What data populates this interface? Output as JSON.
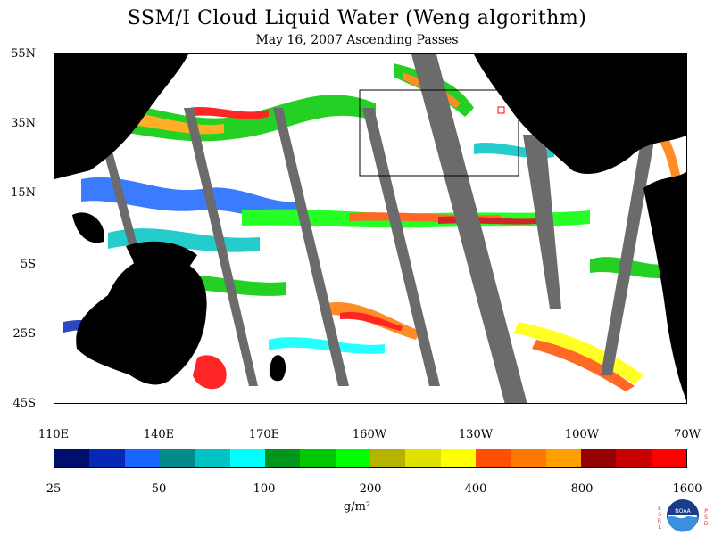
{
  "title": "SSM/I Cloud Liquid Water (Weng algorithm)",
  "subtitle": "May 16, 2007  Ascending Passes",
  "lat_labels": [
    "55N",
    "35N",
    "15N",
    "5S",
    "25S",
    "45S"
  ],
  "lon_labels": [
    "110E",
    "140E",
    "170E",
    "160W",
    "130W",
    "100W",
    "70W"
  ],
  "colorbar": {
    "colors": [
      "#000f6e",
      "#0529b5",
      "#1966ff",
      "#008b8b",
      "#00c4c4",
      "#00ffff",
      "#00961e",
      "#00c800",
      "#00ff00",
      "#b4b400",
      "#e1e100",
      "#ffff00",
      "#ff5000",
      "#ff7800",
      "#ffa000",
      "#960000",
      "#c80000",
      "#ff0000"
    ],
    "labels": [
      "25",
      "50",
      "100",
      "200",
      "400",
      "800",
      "1600"
    ],
    "units": "g/m²"
  },
  "colors": {
    "land": "#000000",
    "no_data": "#6b6b6b",
    "ocean_clear": "#ffffff"
  },
  "logo": {
    "icon": "noaa-logo-icon",
    "left_letters": "ESRL",
    "right_letters": "PSD",
    "center_text": "NOAA"
  }
}
